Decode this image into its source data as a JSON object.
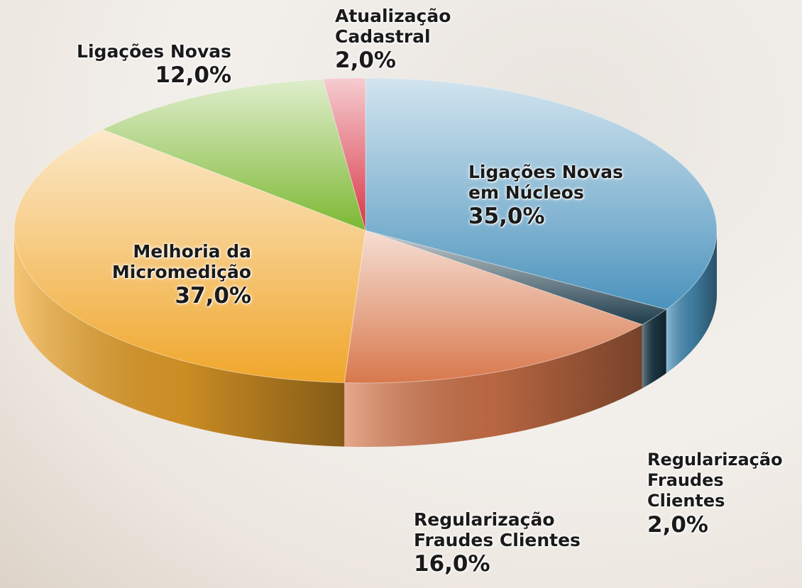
{
  "chart_data": {
    "type": "pie3d",
    "categories": [
      "Ligações Novas em Núcleos",
      "Regularização Fraudes Clientes",
      "Regularização Fraudes Clientes",
      "Melhoria da Micromedição",
      "Ligações Novas",
      "Atualização Cadastral"
    ],
    "values": [
      35,
      2,
      16,
      37,
      12,
      2
    ],
    "value_labels": [
      "35,0%",
      "2,0%",
      "16,0%",
      "37,0%",
      "12,0%",
      "2,0%"
    ],
    "colors": [
      "#4b93bd",
      "#1f3d4c",
      "#d8784c",
      "#f0a62a",
      "#7cb832",
      "#d83444"
    ]
  }
}
